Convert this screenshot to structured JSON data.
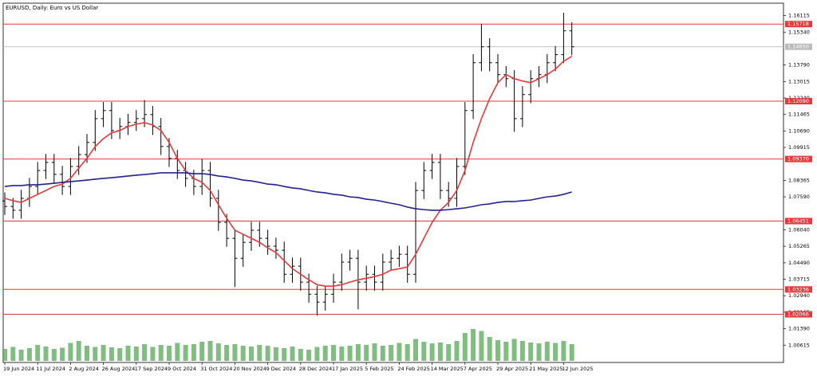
{
  "chart_data": {
    "type": "ohlc",
    "title": "EURUSD, Daily: Euro vs US Dollar",
    "categories": [
      "19 Jun 2024",
      null,
      null,
      null,
      "11 Jul 2024",
      null,
      null,
      null,
      "2 Aug 2024",
      null,
      null,
      null,
      "26 Aug 2024",
      null,
      null,
      null,
      "17 Sep 2024",
      null,
      null,
      null,
      "9 Oct 2024",
      null,
      null,
      null,
      "31 Oct 2024",
      null,
      null,
      null,
      "20 Nov 2024",
      null,
      null,
      null,
      "9 Dec 2024",
      null,
      null,
      null,
      "28 Dec 2024",
      null,
      null,
      null,
      "17 Jan 2025",
      null,
      null,
      null,
      "5 Feb 2025",
      null,
      null,
      null,
      "24 Feb 2025",
      null,
      null,
      null,
      "14 Mar 2025",
      null,
      null,
      null,
      "7 Apr 2025",
      null,
      null,
      null,
      "29 Apr 2025",
      null,
      null,
      null,
      "21 May 2025",
      null,
      null,
      null,
      "12 Jun 2025",
      null
    ],
    "open": [
      1.074,
      1.0714,
      1.0696,
      1.0752,
      1.0808,
      1.0883,
      1.0921,
      1.0865,
      1.0808,
      1.0902,
      1.0958,
      1.1015,
      1.1127,
      1.1165,
      1.1071,
      1.109,
      1.1109,
      1.1127,
      1.1146,
      1.109,
      1.0996,
      1.094,
      1.0883,
      1.0846,
      1.0808,
      1.0883,
      1.0752,
      1.0639,
      1.0564,
      1.047,
      1.0545,
      1.0602,
      1.0564,
      1.0527,
      1.0508,
      1.0395,
      1.0433,
      1.0358,
      1.0301,
      1.0264,
      1.0301,
      1.0358,
      1.0452,
      1.047,
      1.0358,
      1.0395,
      1.0358,
      1.0452,
      1.047,
      1.0489,
      1.0395,
      1.0789,
      1.0883,
      1.0921,
      1.0789,
      1.0752,
      1.0902,
      1.1165,
      1.139,
      1.1465,
      1.139,
      1.1334,
      1.1315,
      1.1127,
      1.124,
      1.1315,
      1.1334,
      1.139,
      1.1428,
      1.154
    ],
    "high": [
      1.078,
      1.0754,
      1.0792,
      1.0848,
      1.0923,
      1.0961,
      1.0961,
      1.0905,
      1.0942,
      1.0998,
      1.1055,
      1.1167,
      1.1205,
      1.1205,
      1.113,
      1.1149,
      1.1167,
      1.1214,
      1.1186,
      1.113,
      1.1036,
      1.098,
      1.0923,
      1.0886,
      1.0937,
      1.0923,
      1.0792,
      1.0679,
      1.0604,
      1.0585,
      1.0642,
      1.0642,
      1.0604,
      1.0567,
      1.0548,
      1.0473,
      1.0473,
      1.0398,
      1.0341,
      1.0341,
      1.0398,
      1.0492,
      1.051,
      1.051,
      1.0435,
      1.0435,
      1.0492,
      1.051,
      1.0529,
      1.0529,
      1.0829,
      1.0923,
      1.0961,
      1.0961,
      1.0829,
      1.0942,
      1.1205,
      1.143,
      1.1573,
      1.1505,
      1.143,
      1.1374,
      1.1355,
      1.128,
      1.1355,
      1.1374,
      1.143,
      1.1468,
      1.1625,
      1.158
    ],
    "low": [
      1.0674,
      1.0656,
      1.0656,
      1.0712,
      1.0768,
      1.0843,
      1.0825,
      1.0768,
      1.0768,
      1.0862,
      1.0918,
      1.0975,
      1.1087,
      1.1031,
      1.1031,
      1.105,
      1.1069,
      1.1087,
      1.105,
      1.0956,
      1.09,
      1.0843,
      1.0806,
      1.0768,
      1.0768,
      1.0712,
      1.0599,
      1.0524,
      1.0335,
      1.043,
      1.0505,
      1.0524,
      1.0487,
      1.0468,
      1.0355,
      1.0355,
      1.0318,
      1.0261,
      1.02,
      1.0224,
      1.0261,
      1.0318,
      1.0412,
      1.023,
      1.0318,
      1.0318,
      1.0318,
      1.0412,
      1.043,
      1.0355,
      1.0355,
      1.0749,
      1.0843,
      1.0749,
      1.0712,
      1.0712,
      1.0862,
      1.1125,
      1.135,
      1.135,
      1.1294,
      1.1275,
      1.1065,
      1.1087,
      1.12,
      1.1275,
      1.1294,
      1.135,
      1.1388,
      1.1425
    ],
    "close": [
      1.0714,
      1.0696,
      1.0752,
      1.0808,
      1.0883,
      1.0921,
      1.0865,
      1.0808,
      1.0902,
      1.0958,
      1.1015,
      1.1127,
      1.1165,
      1.1071,
      1.109,
      1.1109,
      1.1127,
      1.1146,
      1.109,
      1.0996,
      1.094,
      1.0883,
      1.0846,
      1.0808,
      1.0883,
      1.0752,
      1.0639,
      1.0564,
      1.047,
      1.0545,
      1.0602,
      1.0564,
      1.0527,
      1.0508,
      1.0395,
      1.0433,
      1.0358,
      1.0301,
      1.0264,
      1.0301,
      1.0358,
      1.0452,
      1.047,
      1.0358,
      1.0395,
      1.0358,
      1.0452,
      1.047,
      1.0489,
      1.0395,
      1.0789,
      1.0883,
      1.0921,
      1.0789,
      1.0752,
      1.0902,
      1.1165,
      1.139,
      1.1465,
      1.139,
      1.1334,
      1.1315,
      1.1127,
      1.124,
      1.1315,
      1.1334,
      1.139,
      1.1428,
      1.154,
      1.1465
    ],
    "bar_color": "#000000",
    "moving_averages": [
      {
        "color": "#e8393a",
        "values": [
          1.0752,
          1.0741,
          1.0733,
          1.0752,
          1.0771,
          1.0789,
          1.0808,
          1.0819,
          1.0846,
          1.0894,
          1.094,
          1.0996,
          1.1033,
          1.106,
          1.1071,
          1.109,
          1.1101,
          1.1108,
          1.1097,
          1.1071,
          1.1015,
          1.094,
          1.0883,
          1.0846,
          1.0827,
          1.0789,
          1.0722,
          1.0658,
          1.0602,
          1.0583,
          1.0564,
          1.0545,
          1.0519,
          1.0497,
          1.0459,
          1.0421,
          1.0395,
          1.0369,
          1.0346,
          1.0339,
          1.0339,
          1.0346,
          1.0358,
          1.0369,
          1.0376,
          1.0384,
          1.0395,
          1.0414,
          1.0421,
          1.0429,
          1.0489,
          1.0564,
          1.0639,
          1.0696,
          1.0733,
          1.0789,
          1.0883,
          1.1015,
          1.1127,
          1.1221,
          1.1296,
          1.1334,
          1.1315,
          1.1304,
          1.1296,
          1.1315,
          1.1334,
          1.136,
          1.1397,
          1.142
        ]
      },
      {
        "color": "#23238e",
        "values": [
          1.0808,
          1.0812,
          1.0812,
          1.0816,
          1.0816,
          1.0819,
          1.0823,
          1.0827,
          1.0831,
          1.0834,
          1.0838,
          1.0842,
          1.0846,
          1.0849,
          1.0853,
          1.0857,
          1.0861,
          1.0864,
          1.0868,
          1.0872,
          1.0872,
          1.0872,
          1.0872,
          1.0868,
          1.0868,
          1.0864,
          1.0857,
          1.0853,
          1.0846,
          1.0838,
          1.0834,
          1.0827,
          1.0819,
          1.0816,
          1.0808,
          1.0801,
          1.0797,
          1.0789,
          1.0782,
          1.0778,
          1.0771,
          1.0767,
          1.0759,
          1.0756,
          1.0748,
          1.0744,
          1.0737,
          1.0729,
          1.0722,
          1.0711,
          1.0703,
          1.0699,
          1.0696,
          1.0696,
          1.0699,
          1.0703,
          1.0707,
          1.0714,
          1.0722,
          1.0726,
          1.0733,
          1.0737,
          1.0737,
          1.0741,
          1.0744,
          1.0752,
          1.0759,
          1.0763,
          1.0771,
          1.0782
        ]
      }
    ],
    "volume": {
      "color": "#5fae5f",
      "ylim": [
        0,
        100
      ],
      "values": [
        30,
        35,
        28,
        32,
        40,
        36,
        30,
        33,
        45,
        50,
        38,
        35,
        40,
        34,
        32,
        38,
        36,
        42,
        35,
        40,
        38,
        45,
        40,
        42,
        48,
        50,
        44,
        40,
        42,
        38,
        36,
        40,
        38,
        34,
        32,
        36,
        30,
        28,
        35,
        38,
        40,
        36,
        38,
        42,
        40,
        44,
        38,
        40,
        45,
        42,
        55,
        48,
        44,
        46,
        42,
        50,
        70,
        80,
        75,
        60,
        52,
        48,
        55,
        50,
        46,
        44,
        48,
        45,
        50,
        42
      ]
    },
    "levels": {
      "color": "#e8393a",
      "values": [
        1.15718,
        {
          "value": 1.1209,
          "label": "1.12090"
        },
        {
          "value": 1.0937,
          "label": "1.09370"
        },
        1.06451,
        1.03236,
        1.02066
      ]
    },
    "last_price": {
      "value": 1.1465,
      "label": "1.14650"
    },
    "ylim": [
      0.998,
      1.167
    ],
    "yticks": [
      1.16115,
      {
        "value": 1.1534,
        "label": "1.15340"
      },
      {
        "value": 1.1379,
        "label": "1.13790"
      },
      1.13015,
      {
        "value": 1.1224,
        "label": "1.12240"
      },
      1.11465,
      {
        "value": 1.1069,
        "label": "1.10690"
      },
      1.09915,
      1.08365,
      {
        "value": 1.0759,
        "label": "1.07590"
      },
      {
        "value": 1.0604,
        "label": "1.06040"
      },
      1.05265,
      {
        "value": 1.0449,
        "label": "1.04490"
      },
      1.03715,
      {
        "value": 1.0294,
        "label": "1.02940"
      },
      1.02165,
      {
        "value": 1.0139,
        "label": "1.01390"
      },
      1.00615
    ],
    "grid": false
  }
}
